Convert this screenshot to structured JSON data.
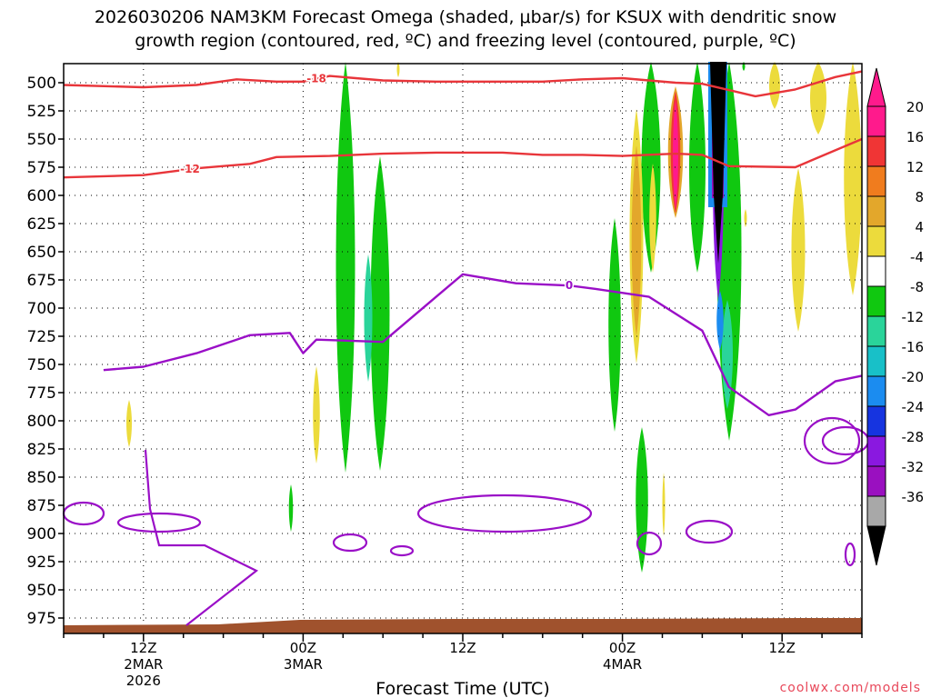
{
  "chart_data": {
    "type": "heatmap",
    "title_line1": "2026030206 NAM3KM Forecast Omega (shaded, μbar/s) for KSUX with dendritic snow",
    "title_line2": "growth region (contoured, red, ºC) and freezing level (contoured, purple, ºC)",
    "xlabel": "Forecast Time (UTC)",
    "credit": "coolwx.com/models",
    "x_range_hours": [
      0,
      60
    ],
    "x_ticks": [
      {
        "hour": 6,
        "label": "12Z",
        "sub1": "2MAR",
        "sub2": "2026"
      },
      {
        "hour": 18,
        "label": "00Z",
        "sub1": "3MAR",
        "sub2": ""
      },
      {
        "hour": 30,
        "label": "12Z",
        "sub1": "",
        "sub2": ""
      },
      {
        "hour": 42,
        "label": "00Z",
        "sub1": "4MAR",
        "sub2": ""
      },
      {
        "hour": 54,
        "label": "12Z",
        "sub1": "",
        "sub2": ""
      }
    ],
    "y_range_mb": [
      485,
      987
    ],
    "y_ticks": [
      500,
      525,
      550,
      575,
      600,
      625,
      650,
      675,
      700,
      725,
      750,
      775,
      800,
      825,
      850,
      875,
      900,
      925,
      950,
      975
    ],
    "colorbar": {
      "labels": [
        "20",
        "16",
        "12",
        "8",
        "4",
        "-4",
        "-8",
        "-12",
        "-16",
        "-20",
        "-24",
        "-28",
        "-32",
        "-36"
      ],
      "colors": [
        "#ff1a8c",
        "#f03535",
        "#f07c1e",
        "#e3a72b",
        "#ecdb3c",
        "#ffffff",
        "#10c810",
        "#2ad49a",
        "#18c0c8",
        "#1b8cf0",
        "#1634e0",
        "#8a18e0",
        "#9a10c0",
        "#a8a8a8"
      ]
    },
    "series": [
      {
        "name": "-18C isotherm (red)",
        "label": "-18",
        "points": [
          [
            0,
            502
          ],
          [
            6,
            504
          ],
          [
            10,
            502
          ],
          [
            13,
            497
          ],
          [
            16,
            499
          ],
          [
            18,
            499
          ],
          [
            20,
            494
          ],
          [
            24,
            498
          ],
          [
            28,
            499
          ],
          [
            32,
            499
          ],
          [
            36,
            499
          ],
          [
            39,
            497
          ],
          [
            42,
            496
          ],
          [
            46,
            500
          ],
          [
            48,
            501
          ],
          [
            52,
            512
          ],
          [
            55,
            506
          ],
          [
            58,
            495
          ],
          [
            60,
            490
          ]
        ]
      },
      {
        "name": "-12C isotherm (red)",
        "label": "-12",
        "points": [
          [
            0,
            584
          ],
          [
            6,
            582
          ],
          [
            10,
            576
          ],
          [
            14,
            572
          ],
          [
            16,
            566
          ],
          [
            20,
            565
          ],
          [
            24,
            563
          ],
          [
            28,
            562
          ],
          [
            30,
            562
          ],
          [
            33,
            562
          ],
          [
            36,
            564
          ],
          [
            39,
            564
          ],
          [
            42,
            565
          ],
          [
            46,
            563
          ],
          [
            48,
            564
          ],
          [
            50,
            574
          ],
          [
            55,
            575
          ],
          [
            58,
            560
          ],
          [
            60,
            550
          ]
        ]
      },
      {
        "name": "0C freezing level (purple)",
        "label": "0",
        "points": [
          [
            3,
            755
          ],
          [
            6,
            752
          ],
          [
            10,
            740
          ],
          [
            14,
            724
          ],
          [
            17,
            722
          ],
          [
            18,
            740
          ],
          [
            19,
            728
          ],
          [
            24,
            730
          ],
          [
            28,
            690
          ],
          [
            30,
            670
          ],
          [
            34,
            678
          ],
          [
            38,
            680
          ],
          [
            40,
            683
          ],
          [
            44,
            690
          ],
          [
            48,
            720
          ],
          [
            50,
            770
          ],
          [
            53,
            795
          ],
          [
            55,
            790
          ],
          [
            58,
            765
          ],
          [
            60,
            760
          ]
        ]
      }
    ],
    "omega_cores": [
      {
        "hour": 21,
        "pressure_mb": 650,
        "value_range": "-12 to -16"
      },
      {
        "hour": 44.5,
        "pressure_mb": 550,
        "value_range": "16 to 20"
      },
      {
        "hour": 48.3,
        "pressure_mb": 550,
        "value_range": "<= -36"
      },
      {
        "hour": 48.3,
        "pressure_mb": 670,
        "value_range": "-24 to -28"
      }
    ]
  }
}
